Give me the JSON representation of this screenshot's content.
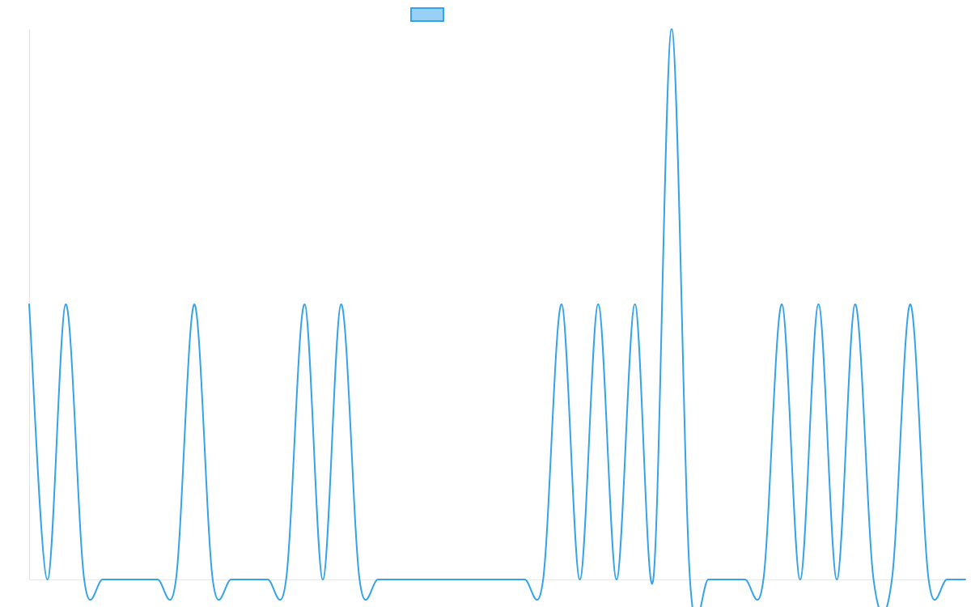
{
  "chart_data": {
    "type": "line",
    "title": "",
    "xlabel": "",
    "ylabel": "",
    "x": [
      0,
      1,
      2,
      3,
      4,
      5,
      6,
      7,
      8,
      9,
      10,
      11,
      12,
      13,
      14,
      15,
      16,
      17,
      18,
      19,
      20,
      21,
      22,
      23,
      24,
      25,
      26,
      27,
      28,
      29,
      30,
      31,
      32,
      33,
      34,
      35,
      36,
      37,
      38,
      39,
      40,
      41,
      42,
      43,
      44,
      45,
      46,
      47,
      48,
      49,
      50,
      51
    ],
    "series": [
      {
        "name": "",
        "color": "#36a2eb",
        "fill_color": "#99d0f5",
        "values": [
          1,
          0,
          1,
          0,
          0,
          0,
          0,
          0,
          0,
          1,
          0,
          0,
          0,
          0,
          0,
          1,
          0,
          1,
          0,
          0,
          0,
          0,
          0,
          0,
          0,
          0,
          0,
          0,
          0,
          1,
          0,
          1,
          0,
          1,
          0,
          2,
          0,
          0,
          0,
          0,
          0,
          1,
          0,
          1,
          0,
          1,
          0,
          0,
          1,
          0,
          0,
          0
        ]
      }
    ],
    "ylim": [
      0,
      2
    ],
    "grid": false,
    "legend": "top-center",
    "curve": "smooth"
  }
}
